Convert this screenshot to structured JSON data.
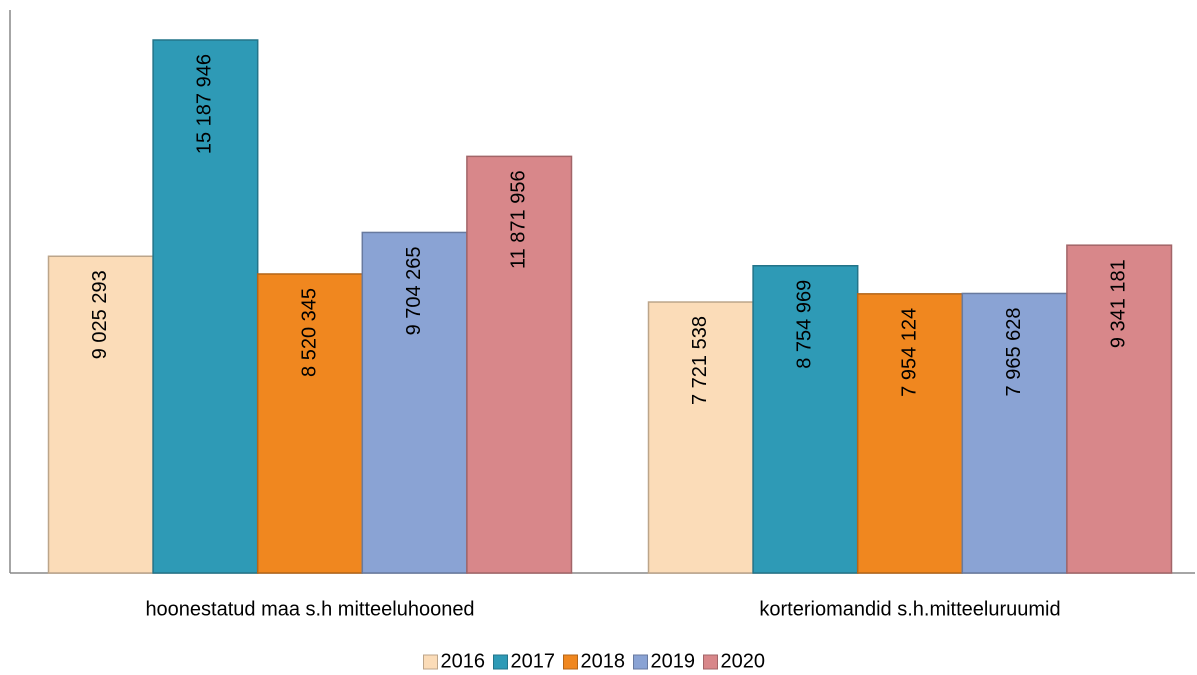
{
  "chart_data": {
    "type": "bar",
    "categories": [
      "hoonestatud maa s.h mitteeluhooned",
      "korteriomandid s.h.mitteeluruumid"
    ],
    "series": [
      {
        "name": "2016",
        "color": "#fbdcb8",
        "values": [
          9025293,
          7721538
        ],
        "value_labels": [
          "9 025 293",
          "7 721 538"
        ]
      },
      {
        "name": "2017",
        "color": "#2e9ab6",
        "values": [
          15187946,
          8754969
        ],
        "value_labels": [
          "15 187 946",
          "8 754 969"
        ]
      },
      {
        "name": "2018",
        "color": "#f0871f",
        "values": [
          8520345,
          7954124
        ],
        "value_labels": [
          "8 520 345",
          "7 954 124"
        ]
      },
      {
        "name": "2019",
        "color": "#8aa3d4",
        "values": [
          9704265,
          7965628
        ],
        "value_labels": [
          "9 704 265",
          "7 965 628"
        ]
      },
      {
        "name": "2020",
        "color": "#d8878a",
        "values": [
          11871956,
          9341181
        ],
        "value_labels": [
          "11 871 956",
          "9 341 181"
        ]
      }
    ],
    "ylim": [
      0,
      16000000
    ],
    "legend": "bottom"
  }
}
